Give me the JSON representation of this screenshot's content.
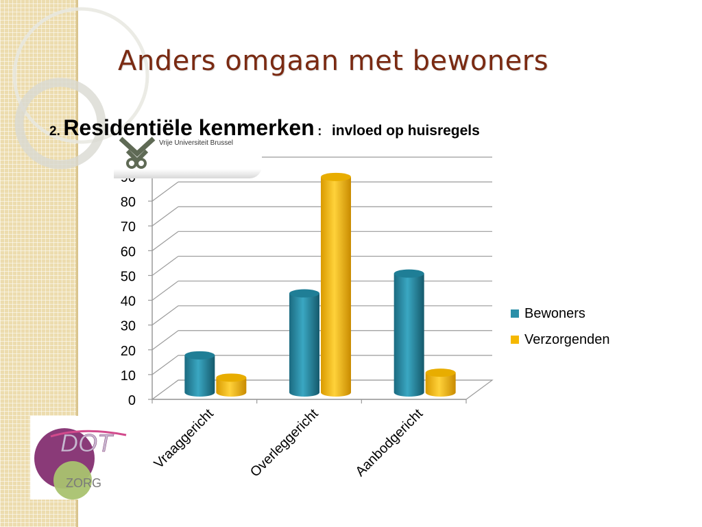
{
  "slide": {
    "title": "Anders omgaan met bewoners",
    "subtitle_number": "2.",
    "subtitle_main": "Residentiële kenmerken",
    "subtitle_colon": ":",
    "subtitle_rest": "invloed op huisregels"
  },
  "logos": {
    "vub_text": "Vrije Universiteit Brussel",
    "dot_text": "DOT",
    "zorg_text": "ZORG"
  },
  "colors": {
    "title": "#7a2a12",
    "bewoners": "#2a8fa8",
    "verzorgenden": "#f5b800"
  },
  "chart_data": {
    "type": "bar",
    "categories": [
      "Vraaggericht",
      "Overleggericht",
      "Aanbodgericht"
    ],
    "series": [
      {
        "name": "Bewoners",
        "values": [
          15,
          40,
          48
        ]
      },
      {
        "name": "Verzorgenden",
        "values": [
          6,
          87,
          8
        ]
      }
    ],
    "yticks": [
      "0",
      "10",
      "20",
      "30",
      "40",
      "50",
      "60",
      "70",
      "80",
      "90"
    ],
    "ylim": [
      0,
      90
    ],
    "grid": true,
    "legend_position": "right",
    "three_d": true
  }
}
